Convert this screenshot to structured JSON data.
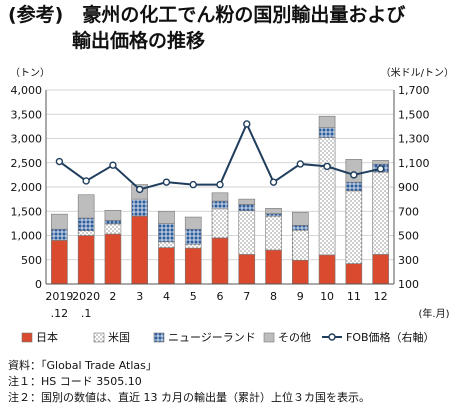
{
  "title": {
    "line1": "(参考)　豪州の化工でん粉の国別輸出量および",
    "line2": "輸出価格の推移"
  },
  "notes": [
    "資料：「Global Trade Atlas」",
    "注１：HS コード 3505.10",
    "注２：国別の数値は、直近 13 カ月の輸出量（累計）上位３カ国を表示。"
  ],
  "chart_data": {
    "type": "bar",
    "stacked": true,
    "categories": [
      "2019\n.12",
      "2020\n.1",
      "2",
      "3",
      "4",
      "5",
      "6",
      "7",
      "8",
      "9",
      "10",
      "11",
      "12"
    ],
    "x_unit": "(年.月)",
    "y_left": {
      "label": "（トン）",
      "min": 0,
      "max": 4000,
      "ticks": [
        0,
        500,
        1000,
        1500,
        2000,
        2500,
        3000,
        3500,
        4000
      ]
    },
    "y_right": {
      "label": "（米ドル/トン）",
      "min": 100,
      "max": 1700,
      "ticks": [
        100,
        300,
        500,
        700,
        900,
        1100,
        1300,
        1500,
        1700
      ]
    },
    "grid": true,
    "legend_position": "bottom",
    "series": [
      {
        "name": "日本",
        "kind": "bar",
        "color": "#d94a2f",
        "values": [
          900,
          1000,
          1030,
          1400,
          750,
          740,
          950,
          610,
          700,
          490,
          600,
          420,
          610
        ]
      },
      {
        "name": "米国",
        "kind": "bar",
        "color": "#ffffff",
        "values": [
          0,
          100,
          210,
          0,
          120,
          80,
          600,
          900,
          700,
          620,
          2420,
          1500,
          1700
        ]
      },
      {
        "name": "ニュージーランド",
        "kind": "bar",
        "color": "#2e5d9e",
        "values": [
          230,
          260,
          70,
          350,
          380,
          310,
          160,
          130,
          50,
          100,
          210,
          180,
          160
        ]
      },
      {
        "name": "その他",
        "kind": "bar",
        "color": "#bdbdbd",
        "values": [
          310,
          480,
          210,
          300,
          250,
          250,
          170,
          110,
          110,
          270,
          230,
          470,
          80
        ]
      },
      {
        "name": "FOB価格（右軸）",
        "kind": "line",
        "axis": "right",
        "color": "#1f3d5c",
        "values": [
          1110,
          950,
          1080,
          880,
          940,
          920,
          920,
          1420,
          940,
          1090,
          1070,
          1000,
          1050
        ]
      }
    ]
  }
}
